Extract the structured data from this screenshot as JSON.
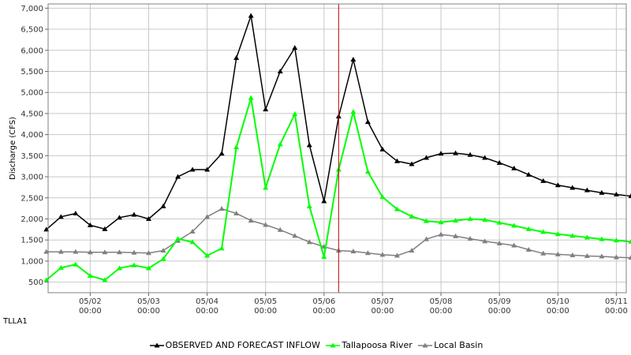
{
  "station": "TLLA1",
  "colors": {
    "observed": "#000000",
    "river": "#00ff00",
    "local": "#808080",
    "now_line": "#c00000",
    "grid": "#c8c8c8",
    "plot_bg": "#ffffff"
  },
  "chart_data": {
    "type": "line",
    "title": "",
    "xlabel": "",
    "ylabel": "Discharge (CFS)",
    "ylim": [
      250,
      7100
    ],
    "xlim": [
      -0.72,
      9.17
    ],
    "yticks": [
      500,
      1000,
      1500,
      2000,
      2500,
      3000,
      3500,
      4000,
      4500,
      5000,
      5500,
      6000,
      6500,
      7000
    ],
    "ytick_labels": [
      "500",
      "1,000",
      "1,500",
      "2,000",
      "2,500",
      "3,000",
      "3,500",
      "4,000",
      "4,500",
      "5,000",
      "5,500",
      "6,000",
      "6,500",
      "7,000"
    ],
    "xticks": [
      {
        "value": 0,
        "date": "05/02",
        "time": "00:00"
      },
      {
        "value": 1,
        "date": "05/03",
        "time": "00:00"
      },
      {
        "value": 2,
        "date": "05/04",
        "time": "00:00"
      },
      {
        "value": 3,
        "date": "05/05",
        "time": "00:00"
      },
      {
        "value": 4,
        "date": "05/06",
        "time": "00:00"
      },
      {
        "value": 5,
        "date": "05/07",
        "time": "00:00"
      },
      {
        "value": 6,
        "date": "05/08",
        "time": "00:00"
      },
      {
        "value": 7,
        "date": "05/09",
        "time": "00:00"
      },
      {
        "value": 8,
        "date": "05/10",
        "time": "00:00"
      },
      {
        "value": 9,
        "date": "05/11",
        "time": "00:00"
      }
    ],
    "now_x": 4.25,
    "x": [
      -0.75,
      -0.5,
      -0.25,
      0,
      0.25,
      0.5,
      0.75,
      1,
      1.25,
      1.5,
      1.75,
      2,
      2.25,
      2.5,
      2.75,
      3,
      3.25,
      3.5,
      3.75,
      4,
      4.25,
      4.5,
      4.75,
      5,
      5.25,
      5.5,
      5.75,
      6,
      6.25,
      6.5,
      6.75,
      7,
      7.25,
      7.5,
      7.75,
      8,
      8.25,
      8.5,
      8.75,
      9,
      9.25
    ],
    "series": [
      {
        "name": "OBSERVED AND FORECAST INFLOW",
        "color_key": "observed",
        "values": [
          1750,
          2050,
          2130,
          1850,
          1760,
          2030,
          2100,
          2000,
          2300,
          3000,
          3170,
          3170,
          3550,
          5820,
          6820,
          4600,
          5500,
          6060,
          3750,
          2420,
          4430,
          5780,
          4300,
          3650,
          3370,
          3300,
          3450,
          3550,
          3560,
          3520,
          3450,
          3330,
          3200,
          3050,
          2900,
          2800,
          2740,
          2680,
          2620,
          2580,
          2540
        ]
      },
      {
        "name": "Tallapoosa River",
        "color_key": "river",
        "values": [
          550,
          840,
          920,
          650,
          550,
          830,
          900,
          830,
          1050,
          1530,
          1450,
          1130,
          1300,
          3700,
          4870,
          2740,
          3770,
          4490,
          2300,
          1100,
          3170,
          4540,
          3120,
          2520,
          2230,
          2060,
          1950,
          1920,
          1960,
          2000,
          1980,
          1910,
          1840,
          1760,
          1690,
          1640,
          1600,
          1560,
          1520,
          1490,
          1460
        ]
      },
      {
        "name": "Local Basin",
        "color_key": "local",
        "values": [
          1220,
          1220,
          1220,
          1210,
          1210,
          1210,
          1200,
          1190,
          1250,
          1480,
          1700,
          2050,
          2240,
          2130,
          1960,
          1860,
          1740,
          1600,
          1450,
          1340,
          1250,
          1230,
          1190,
          1150,
          1130,
          1250,
          1520,
          1630,
          1590,
          1530,
          1470,
          1420,
          1370,
          1270,
          1180,
          1160,
          1140,
          1120,
          1110,
          1090,
          1080
        ]
      }
    ],
    "legend_position": "bottom",
    "grid": true
  }
}
